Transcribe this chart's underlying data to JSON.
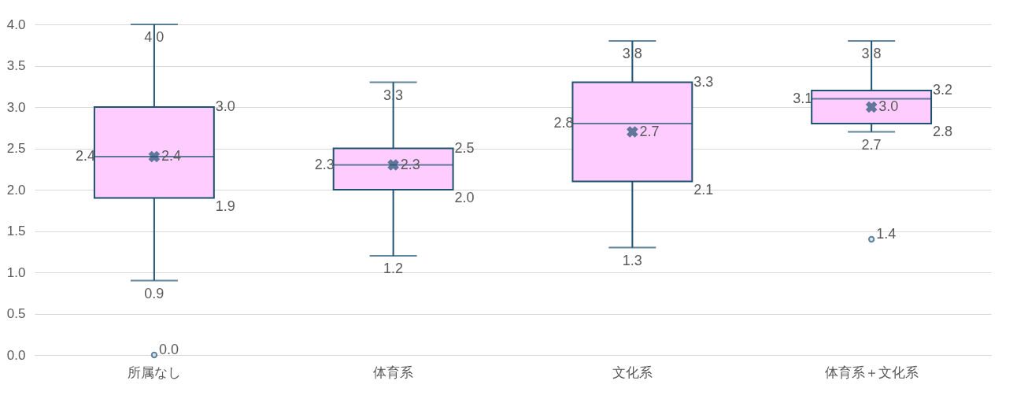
{
  "chart_data": {
    "type": "box",
    "categories": [
      "所属なし",
      "体育系",
      "文化系",
      "体育系＋文化系"
    ],
    "boxes": [
      {
        "low": 0.9,
        "q1": 1.9,
        "median": 2.4,
        "q3": 3.0,
        "high": 4.0,
        "mean": 2.4,
        "outliers": [
          0.0
        ]
      },
      {
        "low": 1.2,
        "q1": 2.0,
        "median": 2.3,
        "q3": 2.5,
        "high": 3.3,
        "mean": 2.3
      },
      {
        "low": 1.3,
        "q1": 2.1,
        "median": 2.8,
        "q3": 3.3,
        "high": 3.8,
        "mean": 2.7
      },
      {
        "low": 2.7,
        "q1": 2.8,
        "median": 3.1,
        "q3": 3.2,
        "high": 3.8,
        "mean": 3.0,
        "outliers": [
          1.4
        ]
      }
    ],
    "color": "#ffccff",
    "ylim": [
      0,
      4
    ],
    "yticks": [
      {
        "value": 0,
        "label": "0.0"
      },
      0.5,
      {
        "value": 1,
        "label": "1.0"
      },
      1.5,
      {
        "value": 2,
        "label": "2.0"
      },
      2.5,
      {
        "value": 3,
        "label": "3.0"
      },
      3.5,
      {
        "value": 4,
        "label": "4.0"
      }
    ],
    "grid": "y",
    "annotations": [
      "3.0",
      "1.9",
      "2.4",
      "2.4",
      "0.9",
      "4.0",
      "0.0",
      "2.5",
      "2.0",
      "2.3",
      "2.3",
      "1.2",
      "3.3",
      "3.3",
      "2.1",
      "2.8",
      "2.7",
      "1.3",
      "3.8",
      "3.2",
      "2.8",
      "3.1",
      "3.0",
      "2.7",
      "3.8",
      "1.4"
    ]
  }
}
